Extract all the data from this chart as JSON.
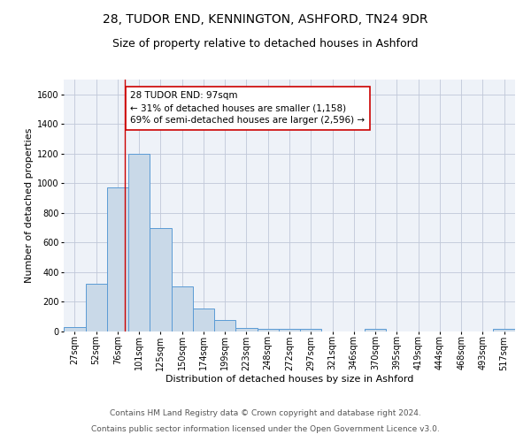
{
  "title1": "28, TUDOR END, KENNINGTON, ASHFORD, TN24 9DR",
  "title2": "Size of property relative to detached houses in Ashford",
  "xlabel": "Distribution of detached houses by size in Ashford",
  "ylabel": "Number of detached properties",
  "annotation_line1": "28 TUDOR END: 97sqm",
  "annotation_line2": "← 31% of detached houses are smaller (1,158)",
  "annotation_line3": "69% of semi-detached houses are larger (2,596) →",
  "property_value": 97,
  "categories": [
    "27sqm",
    "52sqm",
    "76sqm",
    "101sqm",
    "125sqm",
    "150sqm",
    "174sqm",
    "199sqm",
    "223sqm",
    "248sqm",
    "272sqm",
    "297sqm",
    "321sqm",
    "346sqm",
    "370sqm",
    "395sqm",
    "419sqm",
    "444sqm",
    "468sqm",
    "493sqm",
    "517sqm"
  ],
  "bar_edges": [
    27,
    52,
    76,
    101,
    125,
    150,
    174,
    199,
    223,
    248,
    272,
    297,
    321,
    346,
    370,
    395,
    419,
    444,
    468,
    493,
    517,
    542
  ],
  "values": [
    30,
    325,
    970,
    1200,
    700,
    305,
    155,
    80,
    25,
    18,
    15,
    15,
    0,
    0,
    15,
    0,
    0,
    0,
    0,
    0,
    15
  ],
  "bar_color": "#c9d9e8",
  "bar_edge_color": "#5b9bd5",
  "vline_x": 97,
  "vline_color": "#cc0000",
  "ylim": [
    0,
    1700
  ],
  "yticks": [
    0,
    200,
    400,
    600,
    800,
    1000,
    1200,
    1400,
    1600
  ],
  "grid_color": "#c0c8d8",
  "bg_color": "#eef2f8",
  "footer1": "Contains HM Land Registry data © Crown copyright and database right 2024.",
  "footer2": "Contains public sector information licensed under the Open Government Licence v3.0.",
  "title1_fontsize": 10,
  "title2_fontsize": 9,
  "annotation_fontsize": 7.5,
  "axis_fontsize": 7,
  "xlabel_fontsize": 8,
  "ylabel_fontsize": 8,
  "footer_fontsize": 6.5
}
